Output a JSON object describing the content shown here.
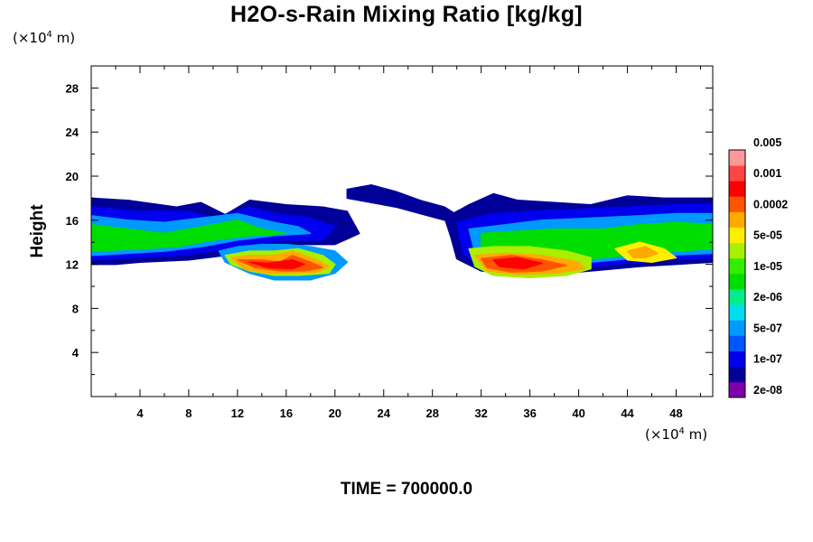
{
  "chart_data": {
    "type": "heatmap",
    "title": "H2O-s-Rain Mixing Ratio [kg/kg]",
    "ylabel": "Height",
    "x_unit_prefix": "(×10",
    "x_unit_exp": "4",
    "x_unit_suffix": " m)",
    "y_unit_prefix": "(×10",
    "y_unit_exp": "4",
    "y_unit_suffix": " m)",
    "xlim": [
      0,
      51
    ],
    "ylim": [
      0,
      30
    ],
    "x_ticks": [
      4,
      8,
      12,
      16,
      20,
      24,
      28,
      32,
      36,
      40,
      44,
      48
    ],
    "x_tick_labels": [
      "4",
      "8",
      "12",
      "16",
      "20",
      "24",
      "28",
      "32",
      "36",
      "40",
      "44",
      "48"
    ],
    "y_ticks": [
      4,
      8,
      12,
      16,
      20,
      24,
      28
    ],
    "y_tick_labels": [
      "4",
      "8",
      "12",
      "16",
      "20",
      "24",
      "28"
    ],
    "colorbar": {
      "colors": [
        "#7f00aa",
        "#000099",
        "#0000ee",
        "#0055ff",
        "#0099ff",
        "#00ddee",
        "#00ee88",
        "#00dd00",
        "#33ee00",
        "#aaee00",
        "#ffee00",
        "#ffaa00",
        "#ff5500",
        "#ff0000",
        "#ff4444",
        "#ff9999"
      ],
      "labels": [
        "2e-08",
        "1e-07",
        "5e-07",
        "2e-06",
        "1e-05",
        "5e-05",
        "0.0002",
        "0.001",
        "0.005"
      ]
    },
    "regions": [
      {
        "level": 1,
        "points": [
          [
            0,
            18
          ],
          [
            3,
            17.8
          ],
          [
            7,
            17.2
          ],
          [
            9,
            17.6
          ],
          [
            11,
            16.5
          ],
          [
            13,
            17.8
          ],
          [
            16,
            17.4
          ],
          [
            19,
            17.2
          ],
          [
            21,
            16.8
          ],
          [
            22,
            14.8
          ],
          [
            20,
            13.8
          ],
          [
            17,
            13.8
          ],
          [
            14,
            13.4
          ],
          [
            11,
            12.8
          ],
          [
            8,
            12.4
          ],
          [
            4,
            12.2
          ],
          [
            2,
            12.0
          ],
          [
            0,
            12.0
          ]
        ]
      },
      {
        "level": 1,
        "points": [
          [
            21,
            18.8
          ],
          [
            23,
            19.2
          ],
          [
            25,
            18.6
          ],
          [
            27,
            17.8
          ],
          [
            29,
            17.2
          ],
          [
            30,
            16.5
          ],
          [
            29,
            16
          ],
          [
            27,
            16.6
          ],
          [
            25,
            17.2
          ],
          [
            23,
            17.6
          ],
          [
            21,
            18
          ]
        ]
      },
      {
        "level": 1,
        "points": [
          [
            29,
            16.2
          ],
          [
            31,
            17.4
          ],
          [
            33,
            18.4
          ],
          [
            35,
            17.8
          ],
          [
            38,
            17.6
          ],
          [
            41,
            17.4
          ],
          [
            44,
            18.2
          ],
          [
            47,
            18.0
          ],
          [
            51,
            18.0
          ],
          [
            51,
            12.2
          ],
          [
            48,
            12.0
          ],
          [
            45,
            11.8
          ],
          [
            42,
            11.5
          ],
          [
            39,
            11.2
          ],
          [
            35,
            11.0
          ],
          [
            32,
            11.4
          ],
          [
            30,
            12.5
          ],
          [
            29.5,
            14.5
          ]
        ]
      },
      {
        "level": 2,
        "points": [
          [
            0,
            17.2
          ],
          [
            4,
            16.8
          ],
          [
            8,
            16.8
          ],
          [
            10,
            16.2
          ],
          [
            13,
            17.2
          ],
          [
            15,
            16.6
          ],
          [
            18,
            16.2
          ],
          [
            20,
            15.4
          ],
          [
            19,
            14.2
          ],
          [
            16,
            14.2
          ],
          [
            13,
            13.8
          ],
          [
            10,
            13.2
          ],
          [
            7,
            12.8
          ],
          [
            3,
            12.6
          ],
          [
            0,
            12.4
          ]
        ]
      },
      {
        "level": 2,
        "points": [
          [
            30,
            15.8
          ],
          [
            33,
            16.6
          ],
          [
            36,
            16.8
          ],
          [
            40,
            17
          ],
          [
            44,
            17.2
          ],
          [
            48,
            17.4
          ],
          [
            51,
            17.4
          ],
          [
            51,
            12.6
          ],
          [
            47,
            12.4
          ],
          [
            43,
            12.0
          ],
          [
            39,
            11.6
          ],
          [
            35,
            11.4
          ],
          [
            32,
            11.8
          ],
          [
            30.5,
            13
          ]
        ]
      },
      {
        "level": 4,
        "points": [
          [
            0,
            16.4
          ],
          [
            3,
            16.0
          ],
          [
            6,
            15.8
          ],
          [
            9,
            16.2
          ],
          [
            12,
            16.6
          ],
          [
            15,
            15.8
          ],
          [
            17,
            15.4
          ],
          [
            18,
            14.8
          ],
          [
            15,
            14.6
          ],
          [
            12,
            14.2
          ],
          [
            9,
            13.6
          ],
          [
            6,
            13.2
          ],
          [
            3,
            13
          ],
          [
            0,
            12.8
          ]
        ]
      },
      {
        "level": 4,
        "points": [
          [
            31,
            15.2
          ],
          [
            34,
            15.6
          ],
          [
            37,
            16.0
          ],
          [
            41,
            16.2
          ],
          [
            45,
            16.4
          ],
          [
            48,
            16.6
          ],
          [
            51,
            16.6
          ],
          [
            51,
            13.0
          ],
          [
            47,
            12.8
          ],
          [
            43,
            12.4
          ],
          [
            39,
            12.0
          ],
          [
            36,
            11.8
          ],
          [
            33,
            12.0
          ],
          [
            31.5,
            13
          ]
        ]
      },
      {
        "level": 7,
        "points": [
          [
            0,
            15.6
          ],
          [
            3,
            15.2
          ],
          [
            6,
            14.8
          ],
          [
            9,
            15.4
          ],
          [
            12,
            16.0
          ],
          [
            14,
            15.2
          ],
          [
            16,
            14.8
          ],
          [
            13,
            14.6
          ],
          [
            10,
            14.2
          ],
          [
            7,
            13.6
          ],
          [
            4,
            13.4
          ],
          [
            0,
            13.2
          ]
        ]
      },
      {
        "level": 7,
        "points": [
          [
            32,
            14.8
          ],
          [
            35,
            15.0
          ],
          [
            38,
            15.2
          ],
          [
            42,
            15.2
          ],
          [
            45,
            15.6
          ],
          [
            48,
            15.8
          ],
          [
            51,
            15.6
          ],
          [
            51,
            13.4
          ],
          [
            48,
            13.2
          ],
          [
            44,
            12.8
          ],
          [
            40,
            12.4
          ],
          [
            36,
            12.2
          ],
          [
            33,
            12.4
          ],
          [
            32,
            13.4
          ]
        ]
      },
      {
        "level": 4,
        "points": [
          [
            10.5,
            13.2
          ],
          [
            12,
            13.6
          ],
          [
            14,
            13.8
          ],
          [
            16,
            13.8
          ],
          [
            18,
            13.6
          ],
          [
            20,
            13.2
          ],
          [
            21,
            12.2
          ],
          [
            20,
            11.2
          ],
          [
            18,
            10.6
          ],
          [
            15,
            10.6
          ],
          [
            13,
            11.2
          ],
          [
            11,
            12.2
          ]
        ]
      },
      {
        "level": 9,
        "points": [
          [
            11,
            12.8
          ],
          [
            13,
            13.2
          ],
          [
            15,
            13.2
          ],
          [
            17,
            13.4
          ],
          [
            19,
            12.8
          ],
          [
            20,
            12
          ],
          [
            19.5,
            11.2
          ],
          [
            17,
            11.0
          ],
          [
            15,
            11.0
          ],
          [
            13,
            11.4
          ],
          [
            11.5,
            12
          ]
        ]
      },
      {
        "level": 11,
        "points": [
          [
            11.5,
            12.6
          ],
          [
            13,
            12.8
          ],
          [
            15,
            12.8
          ],
          [
            16.5,
            13.2
          ],
          [
            18.5,
            12.4
          ],
          [
            19.5,
            11.8
          ],
          [
            18.5,
            11.3
          ],
          [
            16.5,
            11.2
          ],
          [
            14.5,
            11.2
          ],
          [
            12.5,
            11.6
          ]
        ]
      },
      {
        "level": 12,
        "points": [
          [
            12,
            12.4
          ],
          [
            14,
            12.4
          ],
          [
            15.5,
            12.2
          ],
          [
            16.5,
            12.8
          ],
          [
            18,
            12.2
          ],
          [
            19,
            11.7
          ],
          [
            17.5,
            11.4
          ],
          [
            15.5,
            11.4
          ],
          [
            13.5,
            11.7
          ]
        ]
      },
      {
        "level": 13,
        "points": [
          [
            13,
            12.2
          ],
          [
            14.5,
            12.1
          ],
          [
            16.5,
            12.4
          ],
          [
            17.5,
            12.0
          ],
          [
            16.5,
            11.6
          ],
          [
            14.5,
            11.7
          ]
        ]
      },
      {
        "level": 9,
        "points": [
          [
            31,
            13.4
          ],
          [
            33,
            13.6
          ],
          [
            36,
            13.6
          ],
          [
            39,
            13.2
          ],
          [
            41,
            12.6
          ],
          [
            41,
            11.6
          ],
          [
            39,
            11.0
          ],
          [
            36,
            10.8
          ],
          [
            33,
            11.0
          ],
          [
            31.5,
            11.8
          ]
        ]
      },
      {
        "level": 11,
        "points": [
          [
            31.5,
            12.8
          ],
          [
            34,
            13.0
          ],
          [
            37,
            12.8
          ],
          [
            40,
            12.2
          ],
          [
            40.5,
            11.6
          ],
          [
            38,
            11.2
          ],
          [
            35,
            11.1
          ],
          [
            32.5,
            11.4
          ]
        ]
      },
      {
        "level": 12,
        "points": [
          [
            32,
            12.5
          ],
          [
            34.5,
            12.8
          ],
          [
            37,
            12.4
          ],
          [
            39,
            11.9
          ],
          [
            37,
            11.4
          ],
          [
            34.5,
            11.3
          ],
          [
            32.5,
            11.7
          ]
        ]
      },
      {
        "level": 13,
        "points": [
          [
            33,
            12.4
          ],
          [
            35,
            12.6
          ],
          [
            37,
            12.1
          ],
          [
            35.5,
            11.6
          ],
          [
            33.5,
            11.8
          ]
        ]
      },
      {
        "level": 10,
        "points": [
          [
            43,
            13.4
          ],
          [
            45,
            14.0
          ],
          [
            47,
            13.4
          ],
          [
            48,
            12.6
          ],
          [
            46,
            12.2
          ],
          [
            44,
            12.4
          ]
        ]
      },
      {
        "level": 11,
        "points": [
          [
            44,
            13.2
          ],
          [
            45.5,
            13.6
          ],
          [
            46.5,
            13
          ],
          [
            45.5,
            12.6
          ],
          [
            44.5,
            12.6
          ]
        ]
      }
    ]
  },
  "time_label": "TIME = 700000.0"
}
